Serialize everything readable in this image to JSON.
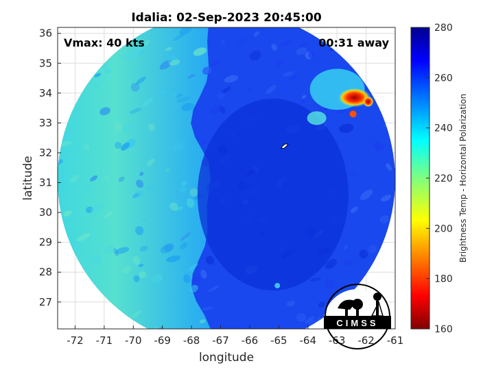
{
  "chart_data": {
    "type": "heatmap",
    "title": "Idalia: 02-Sep-2023 20:45:00",
    "xlabel": "longitude",
    "ylabel": "latitude",
    "xlim": [
      -72.6,
      -61.0
    ],
    "ylim": [
      26.1,
      36.2
    ],
    "xticks": [
      -72,
      -71,
      -70,
      -69,
      -68,
      -67,
      -66,
      -65,
      -64,
      -63,
      -62,
      -61
    ],
    "yticks": [
      27,
      28,
      29,
      30,
      31,
      32,
      33,
      34,
      35,
      36
    ],
    "grid": true,
    "annotations": {
      "vmax": "Vmax: 40 kts",
      "time_away": "00:31 away"
    },
    "colorbar": {
      "label": "Brightness Temp - Horizontal Polarization",
      "range": [
        160,
        280
      ],
      "ticks": [
        160,
        180,
        200,
        220,
        240,
        260,
        280
      ],
      "colormap": "jet",
      "colors": [
        "#800000",
        "#ff0000",
        "#ffff00",
        "#00ffff",
        "#0000ff",
        "#000080"
      ]
    },
    "swath": {
      "center_lon": -66.8,
      "center_lat": 31.1,
      "radius_deg": 5.8
    },
    "field_regions": [
      {
        "region": "west of -67.5",
        "brightness_temp": 232
      },
      {
        "region": "east of -67.5",
        "brightness_temp": 264
      },
      {
        "region": "northeast cluster near -62.3, 33.8",
        "brightness_temp": 175
      }
    ],
    "storm_center": {
      "lon": -64.8,
      "lat": 32.2
    }
  },
  "logo": {
    "text": "CIMSS"
  }
}
